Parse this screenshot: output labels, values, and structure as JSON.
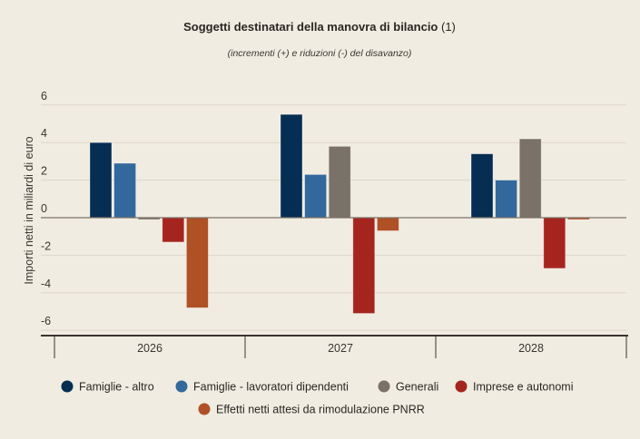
{
  "chart_data": {
    "type": "bar",
    "title": "Soggetti destinatari della manovra di bilancio",
    "title_note": "(1)",
    "subtitle": "(incrementi (+) e riduzioni (-) del disavanzo)",
    "ylabel": "Importi netti in miliardi di euro",
    "xlabel": "",
    "ylim": [
      -6.3,
      6
    ],
    "yticks": [
      6,
      4,
      2,
      0,
      -2,
      -4,
      -6
    ],
    "ytick_labels": [
      "6",
      "4",
      "2",
      "0",
      "-2",
      "-4",
      "-6"
    ],
    "grid": true,
    "legend_position": "bottom",
    "categories": [
      "2026",
      "2027",
      "2028"
    ],
    "series": [
      {
        "name": "Famiglie - altro",
        "color": "#062d52",
        "values": [
          4.0,
          5.5,
          3.4
        ]
      },
      {
        "name": "Famiglie - lavoratori dipendenti",
        "color": "#33689c",
        "values": [
          2.9,
          2.3,
          2.0
        ]
      },
      {
        "name": "Generali",
        "color": "#7a7268",
        "values": [
          -0.1,
          3.8,
          4.2
        ]
      },
      {
        "name": "Imprese e autonomi",
        "color": "#a5251e",
        "values": [
          -1.3,
          -5.1,
          -2.7
        ]
      },
      {
        "name": "Effetti netti attesi da rimodulazione PNRR",
        "color": "#b05025",
        "values": [
          -4.8,
          -0.7,
          -0.1
        ]
      }
    ]
  }
}
